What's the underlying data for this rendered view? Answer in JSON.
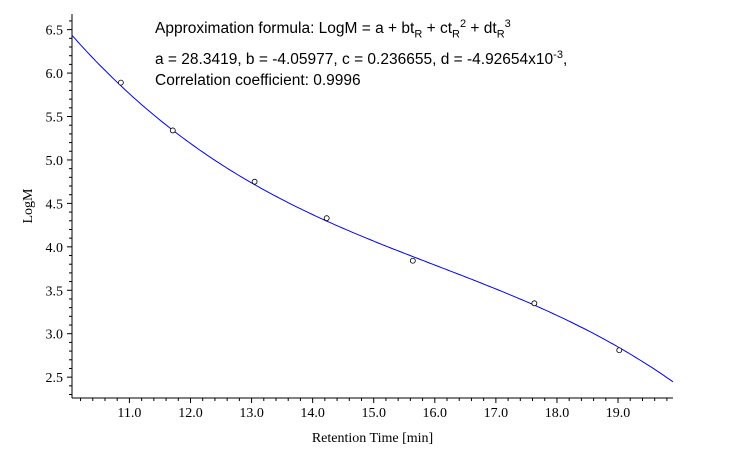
{
  "chart_data": {
    "type": "scatter",
    "title": "",
    "xlabel": "Retention Time [min]",
    "ylabel": "LogM",
    "xlim": [
      10.06,
      19.9
    ],
    "ylim": [
      2.26,
      6.68
    ],
    "xticks": [
      "11.0",
      "12.0",
      "13.0",
      "14.0",
      "15.0",
      "16.0",
      "17.0",
      "18.0",
      "19.0"
    ],
    "yticks": [
      "2.5",
      "3.0",
      "3.5",
      "4.0",
      "4.5",
      "5.0",
      "5.5",
      "6.0",
      "6.5"
    ],
    "points": [
      {
        "x": 10.86,
        "y": 5.89
      },
      {
        "x": 11.71,
        "y": 5.34
      },
      {
        "x": 13.05,
        "y": 4.75
      },
      {
        "x": 14.23,
        "y": 4.33
      },
      {
        "x": 15.64,
        "y": 3.84
      },
      {
        "x": 17.63,
        "y": 3.35
      },
      {
        "x": 19.02,
        "y": 2.81
      }
    ],
    "fit": {
      "a": 28.3419,
      "b": -4.05977,
      "c": 0.236655,
      "d": -0.00492654,
      "color": "#0000ff"
    },
    "annotation": {
      "line1_prefix": "Approximation formula: LogM = a + bt",
      "sub": "R",
      "line1_mid1": " + ct",
      "sup2": "2",
      "line1_mid2": " + dt",
      "sup3": "3",
      "line2": "a = 28.3419, b = -4.05977, c = 0.236655, d = -4.92654x10",
      "line2_exp": "-3",
      "line2_end": ",",
      "line3": "Correlation coefficient: 0.9996"
    }
  }
}
